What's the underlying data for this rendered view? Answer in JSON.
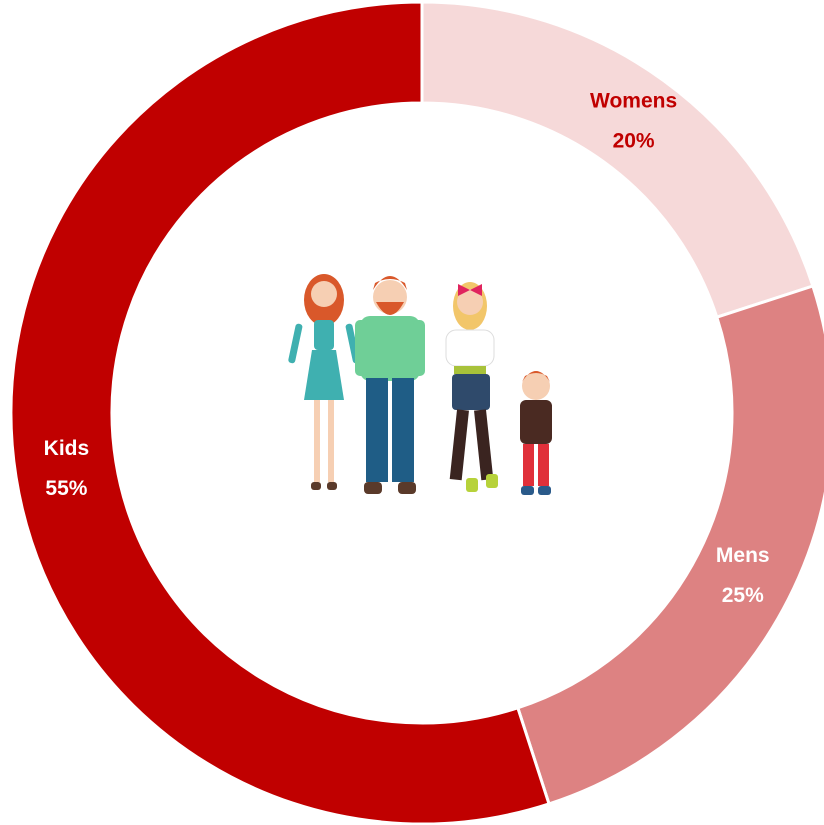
{
  "chart_data": {
    "type": "donut",
    "categories": [
      "Womens",
      "Mens",
      "Kids"
    ],
    "values": [
      20,
      25,
      55
    ],
    "value_labels": [
      "20%",
      "25%",
      "55%"
    ],
    "colors": [
      "#f6d9d9",
      "#dd8282",
      "#c00000"
    ],
    "label_colors": [
      "#c00000",
      "#ffffff",
      "#ffffff"
    ]
  }
}
